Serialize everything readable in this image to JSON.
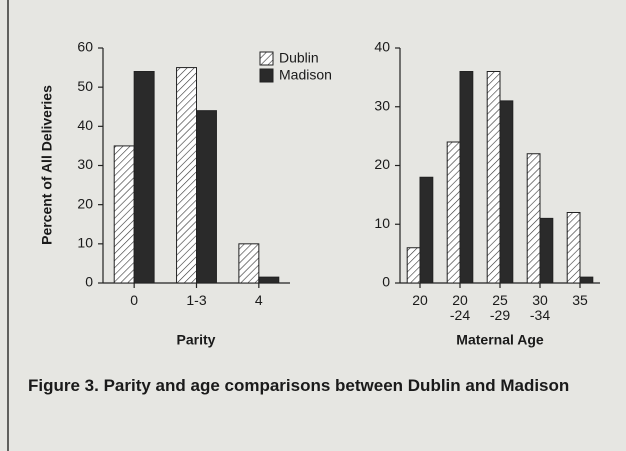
{
  "chart_data": [
    {
      "type": "bar",
      "ylabel": "Percent of All Deliveries",
      "xlabel": "Parity",
      "categories": [
        "0",
        "1-3",
        "4"
      ],
      "series": [
        {
          "name": "Dublin",
          "color": "#ffffff",
          "pattern": "hatch",
          "values": [
            35,
            55,
            10
          ]
        },
        {
          "name": "Madison",
          "color": "#2a2a2a",
          "values": [
            54,
            44,
            1.5
          ]
        }
      ],
      "ylim": [
        0,
        60
      ],
      "yticks": [
        0,
        10,
        20,
        30,
        40,
        50,
        60
      ],
      "legend": "upper right"
    },
    {
      "type": "bar",
      "xlabel": "Maternal Age",
      "categories": [
        "20",
        "20\n-24",
        "25\n-29",
        "30\n-34",
        "35"
      ],
      "series": [
        {
          "name": "Dublin",
          "color": "#ffffff",
          "pattern": "hatch",
          "values": [
            6,
            24,
            36,
            22,
            12
          ]
        },
        {
          "name": "Madison",
          "color": "#2a2a2a",
          "values": [
            18,
            36,
            31,
            11,
            1
          ]
        }
      ],
      "ylim": [
        0,
        40
      ],
      "yticks": [
        0,
        10,
        20,
        30,
        40
      ]
    }
  ],
  "caption": "Figure 3.  Parity and age comparisons between Dublin and Madison"
}
